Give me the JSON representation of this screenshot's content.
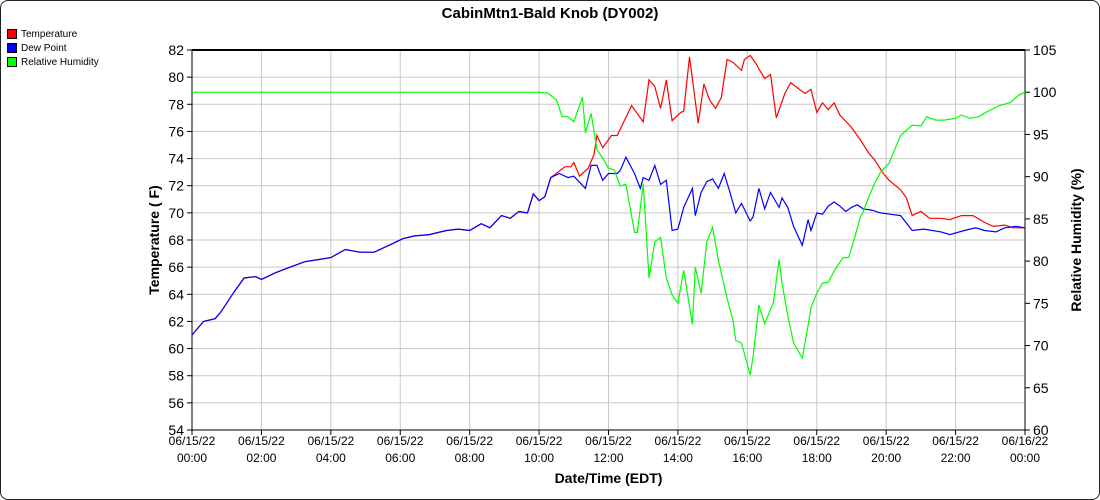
{
  "chart_data": {
    "type": "line",
    "title": "CabinMtn1-Bald Knob (DY002)",
    "xlabel": "Date/Time (EDT)",
    "ylabel_left": "Temperature ( F)",
    "ylabel_right": "Relative Humidity (%)",
    "ylim_left": [
      54,
      82
    ],
    "ylim_right": [
      60,
      105
    ],
    "xlim": [
      "06/15/22 00:00",
      "06/16/22 00:00"
    ],
    "grid": true,
    "legend_position": "top-left",
    "x_ticks": [
      {
        "date": "06/15/22",
        "time": "00:00"
      },
      {
        "date": "06/15/22",
        "time": "02:00"
      },
      {
        "date": "06/15/22",
        "time": "04:00"
      },
      {
        "date": "06/15/22",
        "time": "06:00"
      },
      {
        "date": "06/15/22",
        "time": "08:00"
      },
      {
        "date": "06/15/22",
        "time": "10:00"
      },
      {
        "date": "06/15/22",
        "time": "12:00"
      },
      {
        "date": "06/15/22",
        "time": "14:00"
      },
      {
        "date": "06/15/22",
        "time": "16:00"
      },
      {
        "date": "06/15/22",
        "time": "18:00"
      },
      {
        "date": "06/15/22",
        "time": "20:00"
      },
      {
        "date": "06/15/22",
        "time": "22:00"
      },
      {
        "date": "06/16/22",
        "time": "00:00"
      }
    ],
    "y_ticks_left": [
      54,
      56,
      58,
      60,
      62,
      64,
      66,
      68,
      70,
      72,
      74,
      76,
      78,
      80,
      82
    ],
    "y_ticks_right": [
      60,
      65,
      70,
      75,
      80,
      85,
      90,
      95,
      100,
      105
    ],
    "series": [
      {
        "name": "Temperature",
        "axis": "left",
        "color": "#ff0000",
        "points": [
          [
            "00:00",
            61.0
          ],
          [
            "00:20",
            62.0
          ],
          [
            "00:40",
            62.2
          ],
          [
            "00:50",
            62.7
          ],
          [
            "01:10",
            64.0
          ],
          [
            "01:30",
            65.2
          ],
          [
            "01:50",
            65.3
          ],
          [
            "02:00",
            65.1
          ],
          [
            "02:25",
            65.6
          ],
          [
            "02:50",
            66.0
          ],
          [
            "03:15",
            66.4
          ],
          [
            "03:30",
            66.5
          ],
          [
            "04:00",
            66.7
          ],
          [
            "04:25",
            67.3
          ],
          [
            "04:50",
            67.1
          ],
          [
            "05:15",
            67.1
          ],
          [
            "05:40",
            67.6
          ],
          [
            "06:05",
            68.1
          ],
          [
            "06:25",
            68.3
          ],
          [
            "06:50",
            68.4
          ],
          [
            "07:20",
            68.7
          ],
          [
            "07:40",
            68.8
          ],
          [
            "08:00",
            68.7
          ],
          [
            "08:20",
            69.2
          ],
          [
            "08:35",
            68.9
          ],
          [
            "08:55",
            69.8
          ],
          [
            "09:10",
            69.6
          ],
          [
            "09:25",
            70.1
          ],
          [
            "09:40",
            70.0
          ],
          [
            "09:50",
            71.4
          ],
          [
            "10:00",
            70.9
          ],
          [
            "10:10",
            71.2
          ],
          [
            "10:20",
            72.6
          ],
          [
            "10:45",
            73.4
          ],
          [
            "10:55",
            73.4
          ],
          [
            "11:00",
            73.7
          ],
          [
            "11:10",
            72.7
          ],
          [
            "11:25",
            73.3
          ],
          [
            "11:35",
            74.3
          ],
          [
            "11:40",
            75.7
          ],
          [
            "11:50",
            74.8
          ],
          [
            "12:05",
            75.7
          ],
          [
            "12:15",
            75.7
          ],
          [
            "12:40",
            77.9
          ],
          [
            "13:00",
            76.7
          ],
          [
            "13:10",
            79.8
          ],
          [
            "13:20",
            79.3
          ],
          [
            "13:30",
            77.7
          ],
          [
            "13:40",
            79.8
          ],
          [
            "13:50",
            76.8
          ],
          [
            "14:05",
            77.4
          ],
          [
            "14:10",
            77.5
          ],
          [
            "14:20",
            81.5
          ],
          [
            "14:35",
            76.6
          ],
          [
            "14:45",
            79.5
          ],
          [
            "14:55",
            78.3
          ],
          [
            "15:05",
            77.7
          ],
          [
            "15:15",
            78.5
          ],
          [
            "15:25",
            81.3
          ],
          [
            "15:35",
            81.1
          ],
          [
            "15:50",
            80.5
          ],
          [
            "15:55",
            81.3
          ],
          [
            "16:05",
            81.6
          ],
          [
            "16:15",
            81.0
          ],
          [
            "16:20",
            80.6
          ],
          [
            "16:30",
            79.9
          ],
          [
            "16:40",
            80.2
          ],
          [
            "16:50",
            77.0
          ],
          [
            "17:05",
            78.8
          ],
          [
            "17:15",
            79.6
          ],
          [
            "17:30",
            79.1
          ],
          [
            "17:40",
            78.8
          ],
          [
            "17:50",
            79.1
          ],
          [
            "18:00",
            77.4
          ],
          [
            "18:10",
            78.1
          ],
          [
            "18:20",
            77.6
          ],
          [
            "18:30",
            78.1
          ],
          [
            "18:40",
            77.2
          ],
          [
            "19:00",
            76.3
          ],
          [
            "19:15",
            75.4
          ],
          [
            "19:30",
            74.4
          ],
          [
            "19:40",
            73.9
          ],
          [
            "19:55",
            72.9
          ],
          [
            "20:05",
            72.4
          ],
          [
            "20:25",
            71.7
          ],
          [
            "20:35",
            71.1
          ],
          [
            "20:45",
            69.8
          ],
          [
            "21:00",
            70.1
          ],
          [
            "21:15",
            69.6
          ],
          [
            "21:35",
            69.6
          ],
          [
            "21:50",
            69.5
          ],
          [
            "22:10",
            69.8
          ],
          [
            "22:30",
            69.8
          ],
          [
            "22:50",
            69.3
          ],
          [
            "23:05",
            69.0
          ],
          [
            "23:25",
            69.1
          ],
          [
            "23:40",
            68.9
          ],
          [
            "24:00",
            68.9
          ]
        ]
      },
      {
        "name": "Dew Point",
        "axis": "left",
        "color": "#0000ff",
        "points": [
          [
            "00:00",
            61.0
          ],
          [
            "00:20",
            62.0
          ],
          [
            "00:40",
            62.2
          ],
          [
            "00:50",
            62.7
          ],
          [
            "01:10",
            64.0
          ],
          [
            "01:30",
            65.2
          ],
          [
            "01:50",
            65.3
          ],
          [
            "02:00",
            65.1
          ],
          [
            "02:25",
            65.6
          ],
          [
            "02:50",
            66.0
          ],
          [
            "03:15",
            66.4
          ],
          [
            "03:30",
            66.5
          ],
          [
            "04:00",
            66.7
          ],
          [
            "04:25",
            67.3
          ],
          [
            "04:50",
            67.1
          ],
          [
            "05:15",
            67.1
          ],
          [
            "05:40",
            67.6
          ],
          [
            "06:05",
            68.1
          ],
          [
            "06:25",
            68.3
          ],
          [
            "06:50",
            68.4
          ],
          [
            "07:20",
            68.7
          ],
          [
            "07:40",
            68.8
          ],
          [
            "08:00",
            68.7
          ],
          [
            "08:20",
            69.2
          ],
          [
            "08:35",
            68.9
          ],
          [
            "08:55",
            69.8
          ],
          [
            "09:10",
            69.6
          ],
          [
            "09:25",
            70.1
          ],
          [
            "09:40",
            70.0
          ],
          [
            "09:50",
            71.4
          ],
          [
            "10:00",
            70.9
          ],
          [
            "10:10",
            71.2
          ],
          [
            "10:20",
            72.6
          ],
          [
            "10:35",
            72.9
          ],
          [
            "10:50",
            72.6
          ],
          [
            "11:00",
            72.7
          ],
          [
            "11:20",
            71.8
          ],
          [
            "11:30",
            73.5
          ],
          [
            "11:40",
            73.5
          ],
          [
            "11:50",
            72.4
          ],
          [
            "12:00",
            72.9
          ],
          [
            "12:15",
            72.9
          ],
          [
            "12:20",
            73.1
          ],
          [
            "12:30",
            74.1
          ],
          [
            "12:45",
            72.9
          ],
          [
            "12:55",
            71.8
          ],
          [
            "13:00",
            72.6
          ],
          [
            "13:10",
            72.4
          ],
          [
            "13:20",
            73.5
          ],
          [
            "13:30",
            72.1
          ],
          [
            "13:40",
            72.4
          ],
          [
            "13:50",
            68.7
          ],
          [
            "14:00",
            68.8
          ],
          [
            "14:10",
            70.4
          ],
          [
            "14:25",
            71.8
          ],
          [
            "14:30",
            69.8
          ],
          [
            "14:40",
            71.5
          ],
          [
            "14:50",
            72.3
          ],
          [
            "15:00",
            72.5
          ],
          [
            "15:10",
            71.8
          ],
          [
            "15:20",
            72.9
          ],
          [
            "15:30",
            71.5
          ],
          [
            "15:40",
            70.0
          ],
          [
            "15:50",
            70.7
          ],
          [
            "16:05",
            69.4
          ],
          [
            "16:10",
            69.7
          ],
          [
            "16:20",
            71.8
          ],
          [
            "16:30",
            70.3
          ],
          [
            "16:40",
            71.5
          ],
          [
            "16:55",
            70.4
          ],
          [
            "17:00",
            71.1
          ],
          [
            "17:10",
            70.4
          ],
          [
            "17:20",
            69.0
          ],
          [
            "17:35",
            67.6
          ],
          [
            "17:45",
            69.5
          ],
          [
            "17:50",
            68.7
          ],
          [
            "18:00",
            70.0
          ],
          [
            "18:10",
            69.9
          ],
          [
            "18:20",
            70.5
          ],
          [
            "18:30",
            70.8
          ],
          [
            "18:40",
            70.5
          ],
          [
            "18:50",
            70.1
          ],
          [
            "19:00",
            70.4
          ],
          [
            "19:10",
            70.6
          ],
          [
            "19:20",
            70.3
          ],
          [
            "19:35",
            70.2
          ],
          [
            "19:50",
            70.0
          ],
          [
            "20:25",
            69.8
          ],
          [
            "20:45",
            68.7
          ],
          [
            "21:05",
            68.8
          ],
          [
            "21:35",
            68.6
          ],
          [
            "21:50",
            68.4
          ],
          [
            "22:15",
            68.7
          ],
          [
            "22:35",
            68.9
          ],
          [
            "22:50",
            68.7
          ],
          [
            "23:10",
            68.6
          ],
          [
            "23:25",
            68.9
          ],
          [
            "23:45",
            69.0
          ],
          [
            "24:00",
            68.9
          ]
        ]
      },
      {
        "name": "Relative Humidity",
        "axis": "right",
        "color": "#00ff00",
        "points": [
          [
            "00:00",
            100.0
          ],
          [
            "10:00",
            100.0
          ],
          [
            "10:15",
            99.9
          ],
          [
            "10:30",
            99.1
          ],
          [
            "10:40",
            97.1
          ],
          [
            "10:50",
            97.1
          ],
          [
            "11:00",
            96.5
          ],
          [
            "11:15",
            99.4
          ],
          [
            "11:20",
            95.2
          ],
          [
            "11:30",
            97.5
          ],
          [
            "11:40",
            93.2
          ],
          [
            "11:50",
            92.2
          ],
          [
            "12:00",
            91.0
          ],
          [
            "12:10",
            90.8
          ],
          [
            "12:20",
            88.9
          ],
          [
            "12:30",
            89.1
          ],
          [
            "12:45",
            83.4
          ],
          [
            "12:50",
            83.4
          ],
          [
            "13:00",
            89.2
          ],
          [
            "13:10",
            78.0
          ],
          [
            "13:20",
            82.3
          ],
          [
            "13:30",
            82.8
          ],
          [
            "13:40",
            78.0
          ],
          [
            "13:50",
            76.0
          ],
          [
            "14:00",
            75.0
          ],
          [
            "14:10",
            78.9
          ],
          [
            "14:25",
            72.5
          ],
          [
            "14:30",
            79.3
          ],
          [
            "14:40",
            76.2
          ],
          [
            "14:50",
            82.3
          ],
          [
            "15:00",
            84.0
          ],
          [
            "15:10",
            80.1
          ],
          [
            "15:25",
            75.6
          ],
          [
            "15:35",
            73.0
          ],
          [
            "15:40",
            70.6
          ],
          [
            "15:50",
            70.3
          ],
          [
            "16:05",
            66.5
          ],
          [
            "16:10",
            68.7
          ],
          [
            "16:20",
            74.8
          ],
          [
            "16:30",
            72.6
          ],
          [
            "16:45",
            75.1
          ],
          [
            "16:55",
            80.2
          ],
          [
            "17:00",
            77.4
          ],
          [
            "17:10",
            73.5
          ],
          [
            "17:20",
            70.3
          ],
          [
            "17:35",
            68.5
          ],
          [
            "17:45",
            72.4
          ],
          [
            "17:50",
            74.5
          ],
          [
            "18:00",
            76.2
          ],
          [
            "18:10",
            77.4
          ],
          [
            "18:20",
            77.5
          ],
          [
            "18:30",
            78.8
          ],
          [
            "18:45",
            80.4
          ],
          [
            "18:55",
            80.4
          ],
          [
            "19:05",
            82.7
          ],
          [
            "19:15",
            85.1
          ],
          [
            "19:20",
            85.8
          ],
          [
            "19:30",
            87.6
          ],
          [
            "19:40",
            89.2
          ],
          [
            "19:50",
            90.5
          ],
          [
            "20:05",
            91.6
          ],
          [
            "20:25",
            94.9
          ],
          [
            "20:30",
            95.2
          ],
          [
            "20:45",
            96.1
          ],
          [
            "21:00",
            96.0
          ],
          [
            "21:10",
            97.1
          ],
          [
            "21:25",
            96.7
          ],
          [
            "21:40",
            96.7
          ],
          [
            "22:00",
            96.9
          ],
          [
            "22:10",
            97.3
          ],
          [
            "22:25",
            96.9
          ],
          [
            "22:40",
            97.1
          ],
          [
            "23:00",
            97.9
          ],
          [
            "23:15",
            98.4
          ],
          [
            "23:35",
            98.8
          ],
          [
            "23:50",
            99.7
          ],
          [
            "24:00",
            100.0
          ]
        ]
      }
    ]
  }
}
